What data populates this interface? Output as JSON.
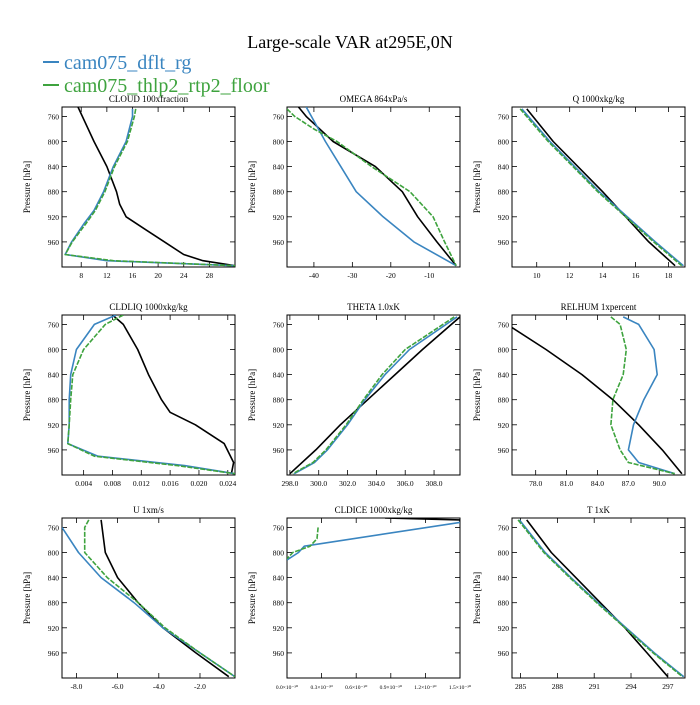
{
  "page": {
    "title": "Large-scale VAR at295E,0N",
    "legend": [
      {
        "name": "cam075_dflt_rg",
        "color": "#3a85c0"
      },
      {
        "name": "cam075_thlp2_rtp2_floor",
        "color": "#3ea33e"
      }
    ]
  },
  "colors": {
    "ref": "#000000",
    "dflt": "#3a85c0",
    "thlp2": "#3ea33e"
  },
  "chart_data": [
    {
      "type": "line",
      "title": "CLOUD  100xfraction",
      "ylabel": "Pressure [hPa]",
      "xlim": [
        5,
        32
      ],
      "ylim": [
        745,
        1000
      ],
      "xticks": [
        "8",
        "12",
        "16",
        "20",
        "24",
        "28"
      ],
      "xtickvals": [
        8,
        12,
        16,
        20,
        24,
        28
      ],
      "yticks": [
        "760",
        "800",
        "840",
        "880",
        "920",
        "960"
      ],
      "series": [
        {
          "key": "ref",
          "p": [
            745,
            800,
            840,
            880,
            900,
            920,
            940,
            960,
            980,
            990,
            998
          ],
          "x": [
            7.5,
            10,
            12,
            13.5,
            14,
            15,
            18,
            21,
            24,
            27,
            32
          ]
        },
        {
          "key": "dflt",
          "p": [
            748,
            760,
            800,
            840,
            880,
            910,
            930,
            960,
            980,
            990,
            998
          ],
          "x": [
            16,
            16,
            15,
            13,
            11.5,
            10,
            8.5,
            6.5,
            5.5,
            12,
            32
          ]
        },
        {
          "key": "thlp2",
          "p": [
            748,
            760,
            800,
            840,
            880,
            910,
            930,
            960,
            980,
            990,
            998
          ],
          "x": [
            16.5,
            16.3,
            15.2,
            13.2,
            11.7,
            10.2,
            8.8,
            6.6,
            5.5,
            13,
            32
          ]
        }
      ]
    },
    {
      "type": "line",
      "title": "OMEGA  864xPa/s",
      "ylabel": "Pressure [hPa]",
      "xlim": [
        -47,
        -2
      ],
      "ylim": [
        745,
        1000
      ],
      "xticks": [
        "-40",
        "-30",
        "-20",
        "-10"
      ],
      "xtickvals": [
        -40,
        -30,
        -20,
        -10
      ],
      "yticks": [
        "760",
        "800",
        "840",
        "880",
        "920",
        "960"
      ],
      "series": [
        {
          "key": "ref",
          "p": [
            745,
            760,
            800,
            840,
            880,
            920,
            960,
            998
          ],
          "x": [
            -44,
            -42,
            -35,
            -24,
            -17,
            -13,
            -8,
            -3
          ]
        },
        {
          "key": "dflt",
          "p": [
            745,
            800,
            840,
            880,
            920,
            960,
            998
          ],
          "x": [
            -42,
            -37,
            -33,
            -29,
            -22,
            -14,
            -3
          ]
        },
        {
          "key": "thlp2",
          "p": [
            748,
            760,
            780,
            800,
            840,
            880,
            920,
            960,
            998
          ],
          "x": [
            -47,
            -45,
            -40,
            -34,
            -25,
            -15,
            -9,
            -6,
            -3
          ]
        }
      ]
    },
    {
      "type": "line",
      "title": "Q  1000xkg/kg",
      "ylabel": "Pressure [hPa]",
      "xlim": [
        8.5,
        19
      ],
      "ylim": [
        745,
        1000
      ],
      "xticks": [
        "10",
        "12",
        "14",
        "16",
        "18"
      ],
      "xtickvals": [
        10,
        12,
        14,
        16,
        18
      ],
      "yticks": [
        "760",
        "800",
        "840",
        "880",
        "920",
        "960"
      ],
      "series": [
        {
          "key": "ref",
          "p": [
            748,
            800,
            840,
            880,
            920,
            960,
            998
          ],
          "x": [
            9.4,
            11,
            12.5,
            14,
            15.4,
            16.8,
            18.4
          ]
        },
        {
          "key": "dflt",
          "p": [
            748,
            800,
            840,
            880,
            920,
            960,
            998
          ],
          "x": [
            9.1,
            10.8,
            12.3,
            13.8,
            15.5,
            17.2,
            18.9
          ]
        },
        {
          "key": "thlp2",
          "p": [
            748,
            800,
            840,
            880,
            920,
            960,
            998
          ],
          "x": [
            9.0,
            10.7,
            12.2,
            13.7,
            15.4,
            17.1,
            18.8
          ]
        }
      ]
    },
    {
      "type": "line",
      "title": "CLDLIQ  1000xkg/kg",
      "ylabel": "Pressure [hPa]",
      "xlim": [
        0.001,
        0.025
      ],
      "ylim": [
        745,
        1000
      ],
      "xticks": [
        "0.004",
        "0.008",
        "0.012",
        "0.016",
        "0.020",
        "0.024"
      ],
      "xtickvals": [
        0.004,
        0.008,
        0.012,
        0.016,
        0.02,
        0.024
      ],
      "yticks": [
        "760",
        "800",
        "840",
        "880",
        "920",
        "960"
      ],
      "series": [
        {
          "key": "ref",
          "p": [
            745,
            760,
            800,
            840,
            880,
            900,
            920,
            950,
            980,
            998
          ],
          "x": [
            0.008,
            0.0095,
            0.0115,
            0.013,
            0.0148,
            0.016,
            0.0195,
            0.0235,
            0.0248,
            0.0245
          ]
        },
        {
          "key": "dflt",
          "p": [
            745,
            760,
            800,
            840,
            880,
            920,
            950,
            970,
            985,
            998
          ],
          "x": [
            0.0085,
            0.0055,
            0.003,
            0.0022,
            0.002,
            0.002,
            0.0018,
            0.006,
            0.018,
            0.025
          ]
        },
        {
          "key": "thlp2",
          "p": [
            745,
            760,
            800,
            840,
            880,
            920,
            950,
            970,
            985,
            998
          ],
          "x": [
            0.0095,
            0.007,
            0.004,
            0.0025,
            0.0022,
            0.002,
            0.0018,
            0.0055,
            0.017,
            0.025
          ]
        }
      ]
    },
    {
      "type": "line",
      "title": "THETA  1.0xK",
      "ylabel": "Pressure [hPa]",
      "xlim": [
        297.8,
        309.8
      ],
      "ylim": [
        745,
        1000
      ],
      "xticks": [
        "298.0",
        "300.0",
        "302.0",
        "304.0",
        "306.0",
        "308.0"
      ],
      "xtickvals": [
        298,
        300,
        302,
        304,
        306,
        308
      ],
      "yticks": [
        "760",
        "800",
        "840",
        "880",
        "920",
        "960"
      ],
      "series": [
        {
          "key": "ref",
          "p": [
            748,
            800,
            840,
            880,
            920,
            960,
            998
          ],
          "x": [
            309.8,
            307.2,
            305.3,
            303.4,
            301.5,
            299.8,
            298.0
          ]
        },
        {
          "key": "dflt",
          "p": [
            748,
            800,
            840,
            880,
            920,
            960,
            980,
            998
          ],
          "x": [
            309.6,
            306.3,
            304.6,
            303.2,
            302.0,
            300.6,
            299.7,
            298.3
          ]
        },
        {
          "key": "thlp2",
          "p": [
            748,
            800,
            840,
            880,
            920,
            960,
            980,
            998
          ],
          "x": [
            309.4,
            306.0,
            304.4,
            303.1,
            301.9,
            300.5,
            299.6,
            298.2
          ]
        }
      ]
    },
    {
      "type": "line",
      "title": "RELHUM  1xpercent",
      "ylabel": "Pressure [hPa]",
      "xlim": [
        75.7,
        92.5
      ],
      "ylim": [
        745,
        1000
      ],
      "xticks": [
        "78.0",
        "81.0",
        "84.0",
        "87.0",
        "90.0"
      ],
      "xtickvals": [
        78,
        81,
        84,
        87,
        90
      ],
      "yticks": [
        "760",
        "800",
        "840",
        "880",
        "920",
        "960"
      ],
      "series": [
        {
          "key": "ref",
          "p": [
            765,
            800,
            840,
            880,
            920,
            960,
            998
          ],
          "x": [
            75.7,
            79,
            82.5,
            85.5,
            88,
            90.3,
            92.2
          ]
        },
        {
          "key": "dflt",
          "p": [
            748,
            760,
            800,
            840,
            880,
            920,
            960,
            980,
            998
          ],
          "x": [
            86.5,
            88,
            89.5,
            89.8,
            88.5,
            87.5,
            87.0,
            88,
            91.5
          ]
        },
        {
          "key": "thlp2",
          "p": [
            748,
            760,
            800,
            840,
            880,
            920,
            960,
            980,
            998
          ],
          "x": [
            85.3,
            86.2,
            86.8,
            86.5,
            85.5,
            85.3,
            86.2,
            87,
            91.5
          ]
        }
      ]
    },
    {
      "type": "line",
      "title": "U  1xm/s",
      "ylabel": "Pressure [hPa]",
      "xlim": [
        -8.7,
        -0.3
      ],
      "ylim": [
        745,
        1000
      ],
      "xticks": [
        "-8.0",
        "-6.0",
        "-4.0",
        "-2.0"
      ],
      "xtickvals": [
        -8,
        -6,
        -4,
        -2
      ],
      "yticks": [
        "760",
        "800",
        "840",
        "880",
        "920",
        "960"
      ],
      "series": [
        {
          "key": "ref",
          "p": [
            748,
            800,
            840,
            880,
            920,
            960,
            998
          ],
          "x": [
            -6.8,
            -6.6,
            -6.0,
            -5.0,
            -3.8,
            -2.2,
            -0.6
          ]
        },
        {
          "key": "dflt",
          "p": [
            760,
            800,
            840,
            880,
            920,
            960,
            998
          ],
          "x": [
            -8.7,
            -7.9,
            -6.8,
            -5.2,
            -3.8,
            -2.0,
            -0.3
          ]
        },
        {
          "key": "thlp2",
          "p": [
            748,
            760,
            800,
            840,
            880,
            920,
            960,
            998
          ],
          "x": [
            -7.4,
            -7.6,
            -7.6,
            -6.5,
            -5.0,
            -3.7,
            -2.0,
            -0.3
          ]
        }
      ]
    },
    {
      "type": "line",
      "title": "CLDICE  1000xkg/kg",
      "ylabel": "Pressure [hPa]",
      "xlim": [
        0.0,
        1.5
      ],
      "ylim": [
        745,
        1000
      ],
      "xticks": [
        "0.0×10⁻³⁰",
        "0.3×10⁻³⁰",
        "0.6×10⁻³⁰",
        "0.9×10⁻³⁰",
        "1.2×10⁻³⁰",
        "1.5×10⁻³⁰"
      ],
      "xtickvals": [
        0.0,
        0.3,
        0.6,
        0.9,
        1.2,
        1.5
      ],
      "yticks": [
        "760",
        "800",
        "840",
        "880",
        "920",
        "960"
      ],
      "series": [
        {
          "key": "ref",
          "p": [
            745,
            748,
            752
          ],
          "x": [
            0.85,
            1.5,
            1.5
          ]
        },
        {
          "key": "dflt",
          "p": [
            752,
            790,
            800,
            812
          ],
          "x": [
            1.5,
            0.15,
            0.1,
            0.0
          ]
        },
        {
          "key": "thlp2",
          "p": [
            760,
            778,
            790,
            800,
            810
          ],
          "x": [
            0.27,
            0.26,
            0.2,
            0.05,
            0.0
          ]
        }
      ]
    },
    {
      "type": "line",
      "title": "T  1xK",
      "ylabel": "Pressure [hPa]",
      "xlim": [
        284.3,
        298.4
      ],
      "ylim": [
        745,
        1000
      ],
      "xticks": [
        "285",
        "288",
        "291",
        "294",
        "297"
      ],
      "xtickvals": [
        285,
        288,
        291,
        294,
        297
      ],
      "yticks": [
        "760",
        "800",
        "840",
        "880",
        "920",
        "960"
      ],
      "series": [
        {
          "key": "ref",
          "p": [
            748,
            800,
            840,
            880,
            920,
            960,
            998
          ],
          "x": [
            285.5,
            287.5,
            289.5,
            291.5,
            293.5,
            295.3,
            297.0
          ]
        },
        {
          "key": "dflt",
          "p": [
            748,
            800,
            840,
            880,
            920,
            960,
            998
          ],
          "x": [
            284.9,
            287.0,
            289.1,
            291.3,
            293.6,
            295.9,
            298.3
          ]
        },
        {
          "key": "thlp2",
          "p": [
            748,
            800,
            840,
            880,
            920,
            960,
            998
          ],
          "x": [
            284.8,
            286.9,
            289.0,
            291.2,
            293.5,
            295.8,
            298.2
          ]
        }
      ]
    }
  ]
}
